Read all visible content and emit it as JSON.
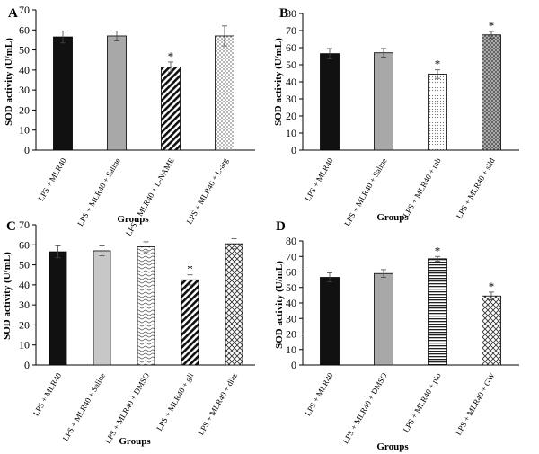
{
  "chart_data": [
    {
      "panel": "A",
      "type": "bar",
      "ylabel": "SOD activity (U/mL)",
      "xlabel": "Groups",
      "ylim": [
        0,
        70
      ],
      "yticks": [
        "0",
        "10",
        "20",
        "30",
        "40",
        "50",
        "60",
        "70"
      ],
      "grid": false,
      "categories": [
        "LPS + MLR40",
        "LPS + MLR40 + Saline",
        "LPS + MLR40 + L-NAME",
        "LPS + MLR40 + L-arg"
      ],
      "values": [
        56.5,
        57,
        41.5,
        57
      ],
      "errors": [
        3,
        2.5,
        2.5,
        5
      ],
      "significant": [
        "",
        "",
        "*",
        ""
      ],
      "fills": [
        "black",
        "gray",
        "diagonal",
        "dots"
      ]
    },
    {
      "panel": "B",
      "type": "bar",
      "ylabel": "SOD activity (U/mL)",
      "xlabel": "Groups",
      "ylim": [
        0,
        80
      ],
      "yticks": [
        "0",
        "10",
        "20",
        "30",
        "40",
        "50",
        "60",
        "70",
        "80"
      ],
      "grid": false,
      "categories": [
        "LPS + MLR40",
        "LPS + MLR40 + Saline",
        "LPS + MLR40 + mb",
        "LPS + MLR40 + sild"
      ],
      "values": [
        56.5,
        57,
        44.5,
        67.5
      ],
      "errors": [
        3,
        2.5,
        2.5,
        2
      ],
      "significant": [
        "",
        "",
        "*",
        "*"
      ],
      "fills": [
        "black",
        "gray",
        "fine-dots",
        "crosshatch"
      ]
    },
    {
      "panel": "C",
      "type": "bar",
      "ylabel": "SOD activity (U/mL)",
      "xlabel": "Groups",
      "ylim": [
        0,
        70
      ],
      "yticks": [
        "0",
        "10",
        "20",
        "30",
        "40",
        "50",
        "60",
        "70"
      ],
      "grid": false,
      "categories": [
        "LPS + MLR40",
        "LPS + MLR40 + Saline",
        "LPS + MLR40 + DMSO",
        "LPS + MLR40 + gli",
        "LPS + MLR40 + diaz"
      ],
      "values": [
        56.5,
        57,
        59,
        42.5,
        60.5
      ],
      "errors": [
        3,
        2.5,
        2.5,
        2.5,
        2.5
      ],
      "significant": [
        "",
        "",
        "",
        "*",
        ""
      ],
      "fills": [
        "black",
        "lightgray",
        "wave",
        "diagonal",
        "checker"
      ]
    },
    {
      "panel": "D",
      "type": "bar",
      "ylabel": "SOD activity (U/mL)",
      "xlabel": "Groups",
      "ylim": [
        0,
        80
      ],
      "yticks": [
        "0",
        "10",
        "20",
        "30",
        "40",
        "50",
        "60",
        "70",
        "80"
      ],
      "grid": false,
      "categories": [
        "LPS + MLR40",
        "LPS + MLR40 + DMSO",
        "LPS + MLR40 + pio",
        "LPS + MLR40 + GW"
      ],
      "values": [
        56.5,
        59,
        68.5,
        44.5
      ],
      "errors": [
        3,
        2.5,
        1.5,
        2.5
      ],
      "significant": [
        "",
        "",
        "*",
        "*"
      ],
      "fills": [
        "black",
        "gray",
        "horizontal",
        "checker"
      ]
    }
  ]
}
